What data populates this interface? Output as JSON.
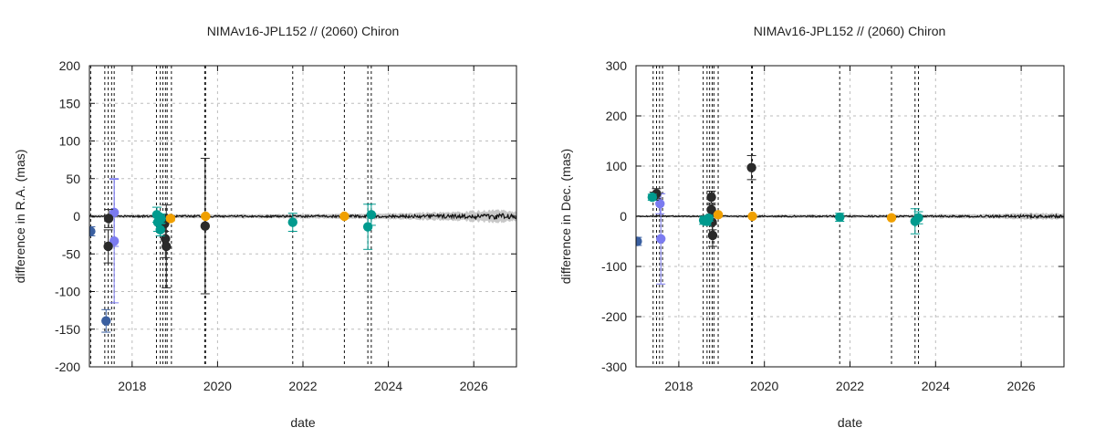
{
  "chart_data": [
    {
      "type": "scatter",
      "title": "NIMAv16-JPL152 // (2060) Chiron",
      "xlabel": "date",
      "ylabel": "difference in R.A. (mas)",
      "xlim": [
        2017.0,
        2027.0
      ],
      "ylim": [
        -200,
        200
      ],
      "xticks": [
        2018,
        2020,
        2022,
        2024,
        2026
      ],
      "yticks": [
        -200,
        -150,
        -100,
        -50,
        0,
        50,
        100,
        150,
        200
      ],
      "grid": true,
      "vlines": [
        2017.03,
        2017.36,
        2017.44,
        2017.52,
        2017.58,
        2018.57,
        2018.66,
        2018.72,
        2018.78,
        2018.82,
        2018.92,
        2019.7,
        2019.72,
        2021.76,
        2022.97,
        2023.52,
        2023.6
      ],
      "band": {
        "color": "#c8c8c8",
        "x": [
          2017.0,
          2019.0,
          2021.0,
          2022.5,
          2024.0,
          2025.5,
          2026.5,
          2027.0
        ],
        "half_width": [
          2,
          2.5,
          2.5,
          3,
          3.5,
          5,
          8,
          6
        ]
      },
      "series": [
        {
          "color": "#3a5fa0",
          "points": [
            {
              "x": 2017.03,
              "y": -20,
              "err": 6
            },
            {
              "x": 2017.39,
              "y": -139,
              "err": 15
            }
          ]
        },
        {
          "color": "#7b7bf0",
          "points": [
            {
              "x": 2017.58,
              "y": 5,
              "err": 45
            },
            {
              "x": 2017.58,
              "y": -33,
              "err": 82
            }
          ]
        },
        {
          "color": "#2a2a2a",
          "points": [
            {
              "x": 2017.45,
              "y": -3,
              "err": 12
            },
            {
              "x": 2017.44,
              "y": -40,
              "err": 22
            },
            {
              "x": 2018.76,
              "y": -10,
              "err": 10
            },
            {
              "x": 2018.78,
              "y": -30,
              "err": 25
            },
            {
              "x": 2018.8,
              "y": -40,
              "err": 55
            },
            {
              "x": 2019.71,
              "y": -13,
              "err": 90
            }
          ]
        },
        {
          "color": "#009a8e",
          "points": [
            {
              "x": 2018.58,
              "y": 2,
              "err": 10
            },
            {
              "x": 2018.6,
              "y": -8,
              "err": 12
            },
            {
              "x": 2018.66,
              "y": -18,
              "err": 8
            },
            {
              "x": 2018.68,
              "y": -3,
              "err": 6
            },
            {
              "x": 2021.76,
              "y": -8,
              "err": 12
            },
            {
              "x": 2023.52,
              "y": -14,
              "err": 30
            },
            {
              "x": 2023.6,
              "y": 2,
              "err": 14
            }
          ]
        },
        {
          "color": "#f0a000",
          "points": [
            {
              "x": 2018.9,
              "y": -3,
              "err": 3
            },
            {
              "x": 2019.72,
              "y": 0,
              "err": 2
            },
            {
              "x": 2022.97,
              "y": 0,
              "err": 2
            }
          ]
        }
      ]
    },
    {
      "type": "scatter",
      "title": "NIMAv16-JPL152 // (2060) Chiron",
      "xlabel": "date",
      "ylabel": "difference in Dec. (mas)",
      "xlim": [
        2017.0,
        2027.0
      ],
      "ylim": [
        -300,
        300
      ],
      "xticks": [
        2018,
        2020,
        2022,
        2024,
        2026
      ],
      "yticks": [
        -300,
        -200,
        -100,
        0,
        100,
        200,
        300
      ],
      "grid": true,
      "vlines": [
        2017.4,
        2017.48,
        2017.55,
        2017.62,
        2018.57,
        2018.66,
        2018.72,
        2018.78,
        2018.82,
        2018.92,
        2019.7,
        2019.72,
        2021.76,
        2022.97,
        2023.52,
        2023.6
      ],
      "band": {
        "color": "#c8c8c8",
        "x": [
          2017.0,
          2019.0,
          2021.0,
          2022.5,
          2024.0,
          2025.5,
          2026.5,
          2027.0
        ],
        "half_width": [
          2,
          2.5,
          3,
          3,
          3.5,
          4.5,
          6,
          5
        ]
      },
      "series": [
        {
          "color": "#3a5fa0",
          "points": [
            {
              "x": 2017.03,
              "y": -50,
              "err": 8
            }
          ]
        },
        {
          "color": "#7b7bf0",
          "points": [
            {
              "x": 2017.56,
              "y": 25,
              "err": 20
            },
            {
              "x": 2017.58,
              "y": -45,
              "err": 90
            }
          ]
        },
        {
          "color": "#2a2a2a",
          "points": [
            {
              "x": 2017.48,
              "y": 45,
              "err": 10
            },
            {
              "x": 2017.42,
              "y": 40,
              "err": 8
            },
            {
              "x": 2018.76,
              "y": 38,
              "err": 12
            },
            {
              "x": 2018.76,
              "y": 13,
              "err": 10
            },
            {
              "x": 2018.78,
              "y": -12,
              "err": 15
            },
            {
              "x": 2018.79,
              "y": -38,
              "err": 22
            },
            {
              "x": 2019.7,
              "y": 97,
              "err": 24
            }
          ]
        },
        {
          "color": "#009a8e",
          "points": [
            {
              "x": 2017.38,
              "y": 38,
              "err": 6
            },
            {
              "x": 2018.58,
              "y": -8,
              "err": 8
            },
            {
              "x": 2018.66,
              "y": -10,
              "err": 8
            },
            {
              "x": 2018.7,
              "y": -4,
              "err": 6
            },
            {
              "x": 2021.76,
              "y": -2,
              "err": 8
            },
            {
              "x": 2023.52,
              "y": -10,
              "err": 25
            },
            {
              "x": 2023.6,
              "y": -3,
              "err": 12
            }
          ]
        },
        {
          "color": "#f0a000",
          "points": [
            {
              "x": 2018.92,
              "y": 3,
              "err": 3
            },
            {
              "x": 2019.72,
              "y": 0,
              "err": 2
            },
            {
              "x": 2022.97,
              "y": -3,
              "err": 2
            }
          ]
        }
      ]
    }
  ]
}
